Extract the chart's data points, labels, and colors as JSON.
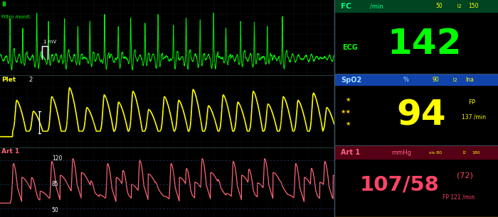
{
  "bg_color": "#000000",
  "ecg_color": "#00ff00",
  "pleth_color": "#ffff00",
  "art_color": "#ff6677",
  "grid_color": "#1a3a3a",
  "grid_color2": "#2a2a4a",
  "ecg_label": "II",
  "ecg_sublabel": "Filtro monit.",
  "ecg_scale": "1 mV",
  "pleth_label": "Plet",
  "pleth_scale": "2",
  "art_label": "Art 1",
  "art_y120": "120",
  "art_y85": "85",
  "art_y50": "50",
  "right_top_value": "142",
  "right_top_value_color": "#00ff00",
  "right_top_label": "ECG",
  "right_top_label_color": "#00ff00",
  "right_top_fc": "FC",
  "right_top_min": "/min",
  "right_top_range": "50",
  "right_top_range2": "150",
  "right_mid_value": "94",
  "right_mid_value_color": "#ffff00",
  "right_mid_header": "SpO2",
  "right_mid_pct": "%",
  "right_mid_range": "90",
  "right_mid_ina": "Ina",
  "right_mid_fp": "FP",
  "right_mid_fp_val": "137 /min",
  "right_bot_header": "Art 1",
  "right_bot_unit": "mmHg",
  "right_bot_sis": "sis 80",
  "right_bot_range": "180",
  "right_bot_value": "107/58",
  "right_bot_sub": "(72)",
  "right_bot_fp": "FP 121 /min",
  "right_bot_value_color": "#ff4466",
  "header_green_bg": "#006633",
  "header_blue_bg": "#0055aa",
  "header_red_bg": "#660022",
  "left_bg": "#030c0c",
  "left_bg2": "#040808"
}
